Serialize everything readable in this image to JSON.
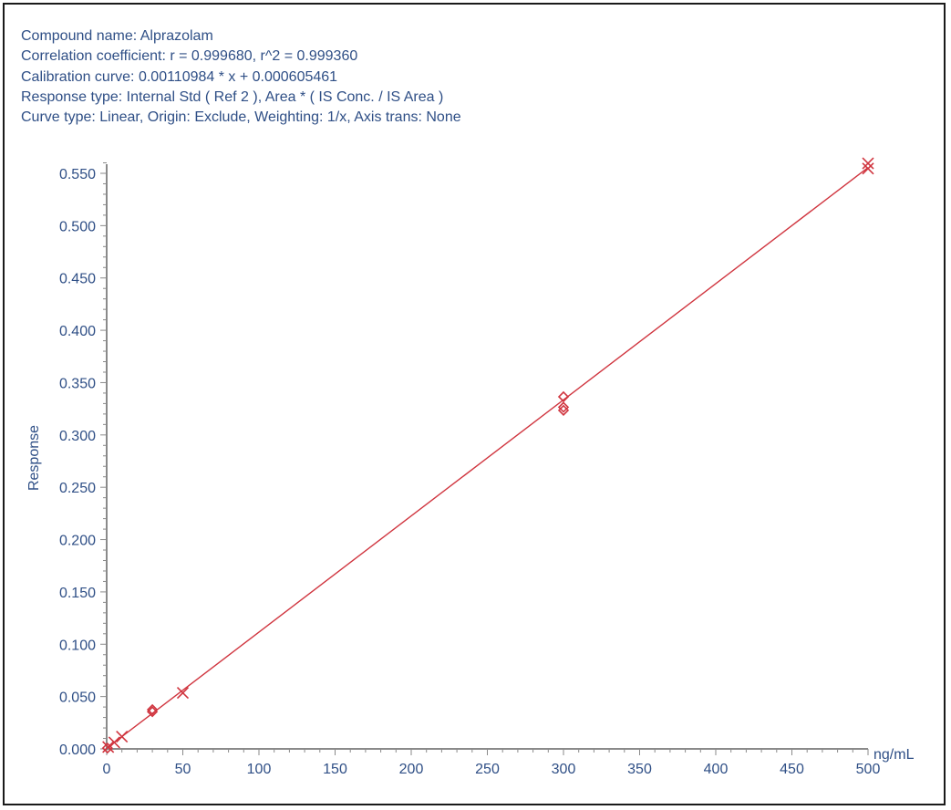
{
  "header": {
    "compound": "Compound name: Alprazolam",
    "correlation": "Correlation coefficient: r = 0.999680, r^2 = 0.999360",
    "calibration": "Calibration curve: 0.00110984 * x + 0.000605461",
    "response_type": "Response type: Internal Std ( Ref 2 ), Area * ( IS Conc. / IS Area )",
    "curve_type": "Curve type: Linear, Origin: Exclude, Weighting: 1/x, Axis trans: None"
  },
  "colors": {
    "text": "#2f4f86",
    "axis": "#8a8a8a",
    "series": "#d0353f",
    "frame": "#1a1a1a"
  },
  "chart_data": {
    "type": "scatter",
    "title": "",
    "xlabel": "",
    "x_unit_label": "ng/mL",
    "ylabel": "Response",
    "xlim": [
      0,
      500
    ],
    "ylim": [
      0,
      0.565
    ],
    "grid": false,
    "legend": "none",
    "x_ticks": [
      0,
      50,
      100,
      150,
      200,
      250,
      300,
      350,
      400,
      450,
      500
    ],
    "x_tick_labels": [
      "0",
      "50",
      "100",
      "150",
      "200",
      "250",
      "300",
      "350",
      "400",
      "450",
      "500"
    ],
    "y_ticks": [
      0,
      0.05,
      0.1,
      0.15,
      0.2,
      0.25,
      0.3,
      0.35,
      0.4,
      0.45,
      0.5,
      0.55
    ],
    "y_tick_labels": [
      "0.000",
      "0.050",
      "0.100",
      "0.150",
      "0.200",
      "0.250",
      "0.300",
      "0.350",
      "0.400",
      "0.450",
      "0.500",
      "0.550"
    ],
    "fit_line": {
      "slope": 0.00110984,
      "intercept": 0.000605461
    },
    "series": [
      {
        "marker": "x",
        "points": [
          {
            "x": 1,
            "y": 0.0018
          },
          {
            "x": 5,
            "y": 0.0062
          },
          {
            "x": 10,
            "y": 0.0117
          },
          {
            "x": 50,
            "y": 0.0535
          },
          {
            "x": 500,
            "y": 0.5595
          },
          {
            "x": 500,
            "y": 0.5545
          }
        ]
      },
      {
        "marker": "diamond",
        "points": [
          {
            "x": 0.5,
            "y": 0.0008
          },
          {
            "x": 30,
            "y": 0.0355
          },
          {
            "x": 30,
            "y": 0.0375
          },
          {
            "x": 300,
            "y": 0.3365
          },
          {
            "x": 300,
            "y": 0.3265
          },
          {
            "x": 300,
            "y": 0.3235
          }
        ]
      }
    ]
  }
}
